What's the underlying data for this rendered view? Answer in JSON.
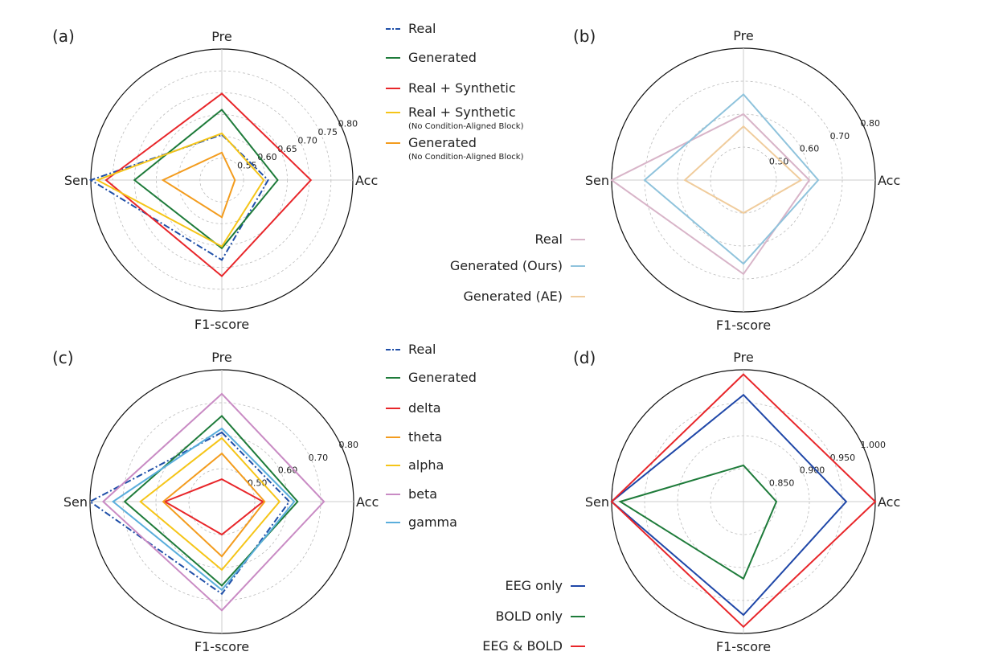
{
  "chart_data": [
    {
      "panel": "(a)",
      "type": "radar",
      "axes": [
        "Pre",
        "Acc",
        "F1-score",
        "Sen"
      ],
      "range": [
        0.5,
        0.8
      ],
      "ticks": [
        "0.55",
        "0.60",
        "0.65",
        "0.70",
        "0.75",
        "0.80"
      ],
      "tick_values": [
        0.55,
        0.6,
        0.65,
        0.7,
        0.75,
        0.8
      ],
      "legend_placement": "right",
      "series": [
        {
          "name": "Real",
          "sub": "",
          "color": "#1f4fa8",
          "style": "dashdot",
          "values": [
            0.604,
            0.606,
            0.683,
            0.8
          ]
        },
        {
          "name": "Generated",
          "sub": "",
          "color": "#1e7b3a",
          "style": "solid",
          "values": [
            0.661,
            0.628,
            0.656,
            0.7
          ]
        },
        {
          "name": "Real + Synthetic",
          "sub": "",
          "color": "#e8262a",
          "style": "solid",
          "values": [
            0.698,
            0.704,
            0.72,
            0.765
          ]
        },
        {
          "name": "Real + Synthetic",
          "sub": "(No Condition-Aligned Block)",
          "color": "#f5c518",
          "style": "solid",
          "values": [
            0.607,
            0.596,
            0.652,
            0.785
          ]
        },
        {
          "name": "Generated",
          "sub": "(No Condition-Aligned Block)",
          "color": "#f39c1e",
          "style": "solid",
          "values": [
            0.563,
            0.53,
            0.585,
            0.635
          ]
        }
      ]
    },
    {
      "panel": "(b)",
      "type": "radar",
      "axes": [
        "Pre",
        "Acc",
        "F1-score",
        "Sen"
      ],
      "range": [
        0.4,
        0.8
      ],
      "ticks": [
        "0.50",
        "0.60",
        "0.70",
        "0.80"
      ],
      "tick_values": [
        0.5,
        0.6,
        0.7,
        0.8
      ],
      "legend_placement": "bottom-left",
      "series": [
        {
          "name": "Real",
          "color": "#d8b4c8",
          "style": "solid",
          "values": [
            0.6,
            0.6,
            0.685,
            0.8
          ]
        },
        {
          "name": "Generated (Ours)",
          "color": "#8fc3dc",
          "style": "solid",
          "values": [
            0.66,
            0.627,
            0.654,
            0.7
          ]
        },
        {
          "name": "Generated (AE)",
          "color": "#f0cc9c",
          "style": "solid",
          "values": [
            0.563,
            0.575,
            0.5,
            0.578
          ]
        }
      ]
    },
    {
      "panel": "(c)",
      "type": "radar",
      "axes": [
        "Pre",
        "Acc",
        "F1-score",
        "Sen"
      ],
      "range": [
        0.4,
        0.8
      ],
      "ticks": [
        "0.50",
        "0.60",
        "0.70",
        "0.80"
      ],
      "tick_values": [
        0.5,
        0.6,
        0.7,
        0.8
      ],
      "legend_placement": "right",
      "series": [
        {
          "name": "Real",
          "color": "#1f4fa8",
          "style": "dashdot",
          "values": [
            0.61,
            0.605,
            0.68,
            0.8
          ]
        },
        {
          "name": "Generated",
          "color": "#1e7b3a",
          "style": "solid",
          "values": [
            0.66,
            0.63,
            0.655,
            0.695
          ]
        },
        {
          "name": "delta",
          "color": "#e8262a",
          "style": "solid",
          "values": [
            0.468,
            0.525,
            0.5,
            0.573
          ]
        },
        {
          "name": "theta",
          "color": "#f39c1e",
          "style": "solid",
          "values": [
            0.546,
            0.53,
            0.566,
            0.578
          ]
        },
        {
          "name": "alpha",
          "color": "#f5c518",
          "style": "solid",
          "values": [
            0.593,
            0.575,
            0.607,
            0.647
          ]
        },
        {
          "name": "beta",
          "color": "#c98bc4",
          "style": "solid",
          "values": [
            0.727,
            0.71,
            0.73,
            0.76
          ]
        },
        {
          "name": "gamma",
          "color": "#5aaedc",
          "style": "solid",
          "values": [
            0.622,
            0.62,
            0.668,
            0.73
          ]
        }
      ]
    },
    {
      "panel": "(d)",
      "type": "radar",
      "axes": [
        "Pre",
        "Acc",
        "F1-score",
        "Sen"
      ],
      "range": [
        0.8,
        1.0
      ],
      "ticks": [
        "0.850",
        "0.900",
        "0.950",
        "1.000"
      ],
      "tick_values": [
        0.85,
        0.9,
        0.95,
        1.0
      ],
      "legend_placement": "bottom-left",
      "series": [
        {
          "name": "EEG only",
          "color": "#1f47a8",
          "style": "solid",
          "values": [
            0.962,
            0.956,
            0.972,
            1.0
          ]
        },
        {
          "name": "BOLD only",
          "color": "#1e7b3a",
          "style": "solid",
          "values": [
            0.855,
            0.85,
            0.917,
            0.987
          ]
        },
        {
          "name": "EEG & BOLD",
          "color": "#e8262a",
          "style": "solid",
          "values": [
            0.993,
            1.0,
            0.99,
            1.0
          ]
        }
      ]
    }
  ]
}
